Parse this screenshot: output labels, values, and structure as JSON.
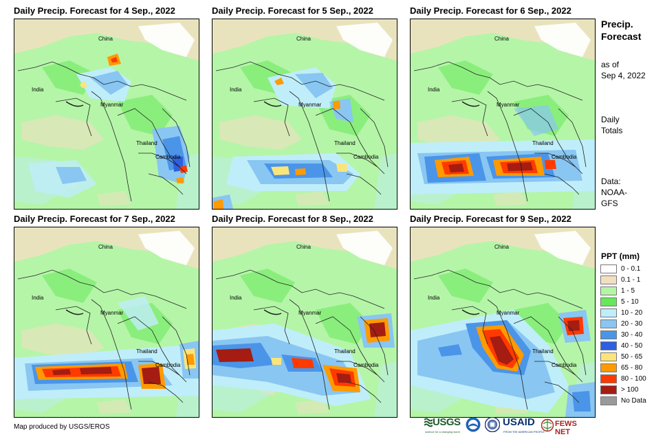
{
  "panels": [
    {
      "title": "Daily Precip. Forecast for 4 Sep., 2022",
      "day": "4 Sep., 2022"
    },
    {
      "title": "Daily Precip. Forecast for 5 Sep., 2022",
      "day": "5 Sep., 2022"
    },
    {
      "title": "Daily Precip. Forecast for 6 Sep., 2022",
      "day": "6 Sep., 2022"
    },
    {
      "title": "Daily Precip. Forecast for 7 Sep., 2022",
      "day": "7 Sep., 2022"
    },
    {
      "title": "Daily Precip. Forecast for 8 Sep., 2022",
      "day": "8 Sep., 2022"
    },
    {
      "title": "Daily Precip. Forecast for 9 Sep., 2022",
      "day": "9 Sep., 2022"
    }
  ],
  "country_labels": {
    "china": "China",
    "india": "India",
    "myanmar": "Myanmar",
    "thailand": "Thailand",
    "cambodia": "Cambodia"
  },
  "sidebar": {
    "title_line1": "Precip.",
    "title_line2": "Forecast",
    "asof_line1": "as of",
    "asof_line2": "Sep 4, 2022",
    "daily_line1": "Daily",
    "daily_line2": "Totals",
    "data_line1": "Data:",
    "data_line2": "NOAA-",
    "data_line3": "GFS"
  },
  "legend": {
    "title": "PPT (mm)",
    "items": [
      {
        "label": "0 - 0.1",
        "color": "#ffffff"
      },
      {
        "label": "0.1 - 1",
        "color": "#f2dfc1"
      },
      {
        "label": "1 - 5",
        "color": "#b5f5a8"
      },
      {
        "label": "5 - 10",
        "color": "#66e85a"
      },
      {
        "label": "10 - 20",
        "color": "#bfeefa"
      },
      {
        "label": "20 - 30",
        "color": "#89c6f2"
      },
      {
        "label": "30 - 40",
        "color": "#4a95e8"
      },
      {
        "label": "40 - 50",
        "color": "#2d5fe0"
      },
      {
        "label": "50 - 65",
        "color": "#fbe57a"
      },
      {
        "label": "65 - 80",
        "color": "#ff9a00"
      },
      {
        "label": "80 - 100",
        "color": "#ff3a00"
      },
      {
        "label": "> 100",
        "color": "#a51c12"
      },
      {
        "label": "No Data",
        "color": "#9a9a9a"
      }
    ]
  },
  "credit": "Map produced by USGS/EROS",
  "logos": {
    "usgs": "USGS",
    "usgs_tagline": "science for a changing world",
    "usaid": "USAID",
    "usaid_tagline": "FROM THE AMERICAN PEOPLE",
    "fewsnet": "FEWS NET"
  }
}
